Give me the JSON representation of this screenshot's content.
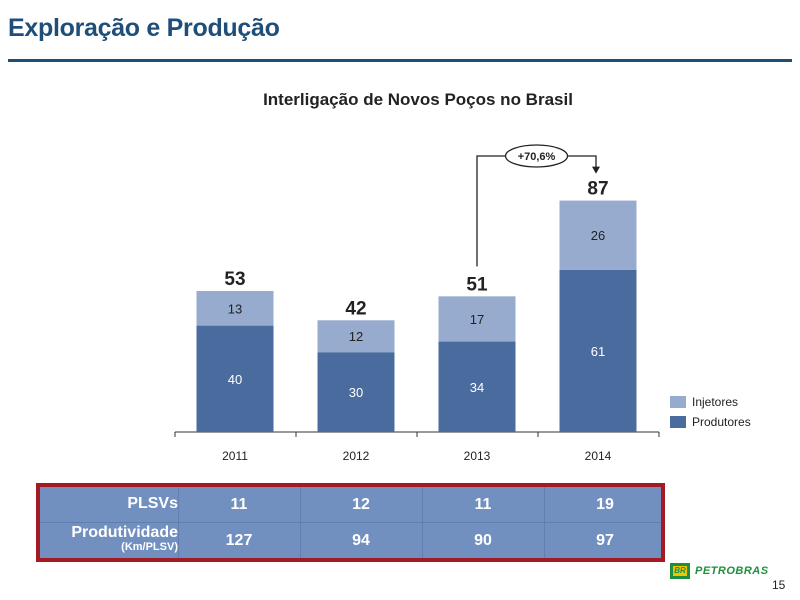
{
  "header": {
    "title": "Exploração e Produção"
  },
  "chart_data": {
    "type": "bar",
    "stacked": true,
    "title": "Interligação de Novos Poços  no Brasil",
    "categories": [
      "2011",
      "2012",
      "2013",
      "2014"
    ],
    "series": [
      {
        "name": "Produtores",
        "values": [
          40,
          30,
          34,
          61
        ],
        "color": "#4a6b9d"
      },
      {
        "name": "Injetores",
        "values": [
          13,
          12,
          17,
          26
        ],
        "color": "#97abce"
      }
    ],
    "totals": [
      53,
      42,
      51,
      87
    ],
    "annotation": {
      "text": "+70,6%",
      "from": "2013",
      "to": "2014"
    },
    "legend_position": "right",
    "grid": false,
    "ylim": [
      0,
      100
    ]
  },
  "table": {
    "rows": [
      {
        "label": "PLSVs",
        "sub": "",
        "values": [
          "11",
          "12",
          "11",
          "19"
        ]
      },
      {
        "label": "Produtividade",
        "sub": "(Km/PLSV)",
        "values": [
          "127",
          "94",
          "90",
          "97"
        ]
      }
    ]
  },
  "footer": {
    "logo_text": "PETROBRAS",
    "logo_mark": "BR",
    "page_number": "15"
  },
  "colors": {
    "accent": "#1f4e79",
    "table_border": "#a31a22",
    "table_bg": "#7290bf"
  }
}
